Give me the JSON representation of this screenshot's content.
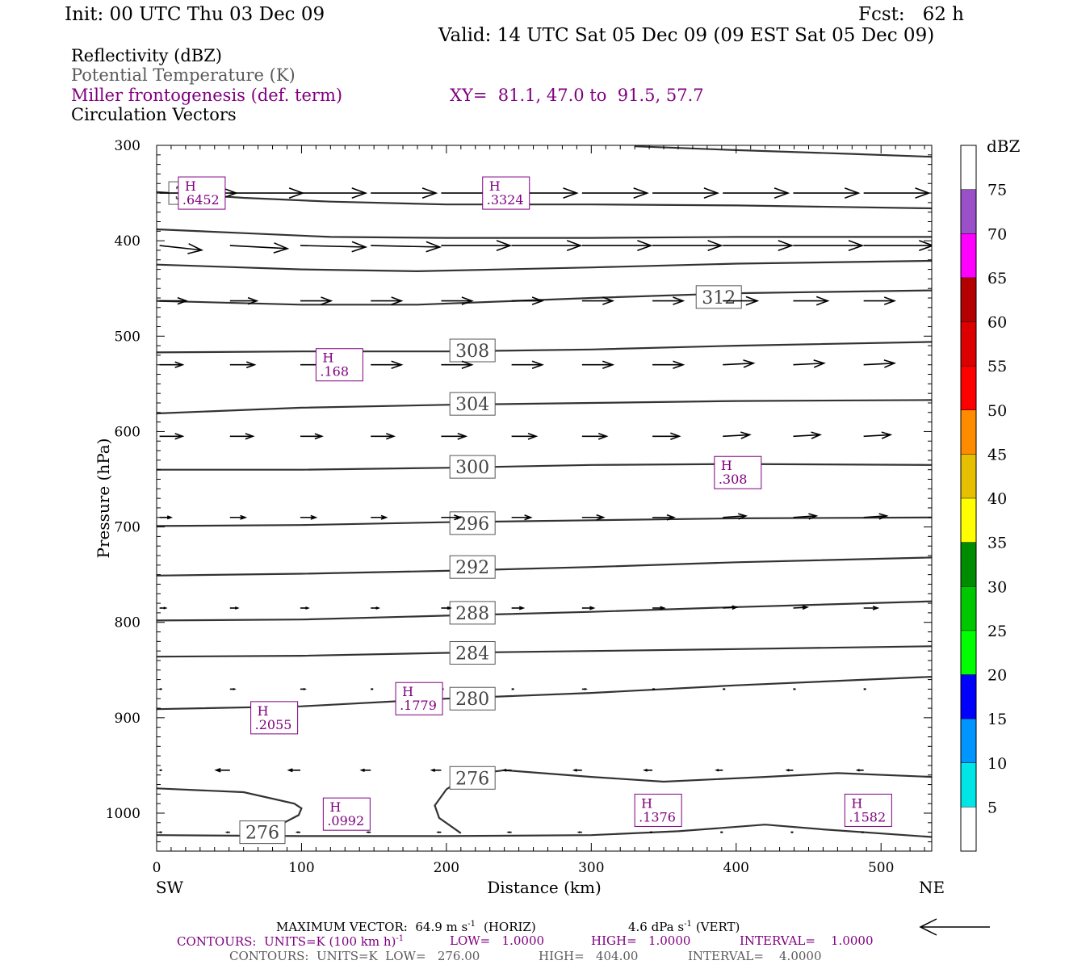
{
  "header": {
    "init": "Init: 00 UTC Thu 03 Dec 09",
    "fcst": "Fcst:   62 h",
    "valid": "Valid: 14 UTC Sat 05 Dec 09 (09 EST Sat 05 Dec 09)"
  },
  "fields": {
    "f1": "Reflectivity (dBZ)",
    "f2": "Potential Temperature (K)",
    "f3": "Miller frontogenesis (def. term)",
    "xy": "XY=  81.1, 47.0 to  91.5, 57.7",
    "f4": "Circulation Vectors"
  },
  "footer": {
    "line1_a": "MAXIMUM VECTOR:  64.9 m s",
    "line1_b": "(HORIZ)",
    "line1_c": "4.6 dPa s",
    "line1_d": "(VERT)",
    "sup": "-1",
    "line2_a": "CONTOURS:  UNITS=K (100 km h)",
    "line2_b": "LOW=   1.0000",
    "line2_c": "HIGH=   1.0000",
    "line2_d": "INTERVAL=    1.0000",
    "line3_a": "CONTOURS:  UNITS=K  LOW=   276.00",
    "line3_b": "HIGH=   404.00",
    "line3_c": "INTERVAL=    4.0000"
  },
  "colors": {
    "purple": "#800080",
    "grey": "#5a5a5a"
  },
  "chart_data": {
    "type": "line",
    "title": "",
    "xlabel": "Distance (km)",
    "ylabel": "Pressure (hPa)",
    "xlim": [
      0,
      535
    ],
    "ylim": [
      1040,
      300
    ],
    "x_ticks": [
      0,
      100,
      200,
      300,
      400,
      500
    ],
    "y_ticks": [
      300,
      400,
      500,
      600,
      700,
      800,
      900,
      1000
    ],
    "x_end_labels": {
      "left": "SW",
      "right": "NE"
    },
    "grid": false,
    "theta_contours": [
      {
        "label": "276",
        "points": [
          [
            0,
            1023
          ],
          [
            100,
            1024
          ],
          [
            200,
            1024
          ],
          [
            300,
            1023
          ],
          [
            360,
            1019
          ],
          [
            420,
            1012
          ],
          [
            460,
            1017
          ],
          [
            535,
            1025
          ]
        ]
      },
      {
        "label": "276",
        "points": [
          [
            0,
            974
          ],
          [
            60,
            978
          ],
          [
            95,
            990
          ],
          [
            100,
            995
          ],
          [
            98,
            1002
          ],
          [
            88,
            1010
          ],
          [
            86,
            1015
          ]
        ]
      },
      {
        "label": "276",
        "points": [
          [
            210,
            1021
          ],
          [
            195,
            1005
          ],
          [
            192,
            992
          ],
          [
            200,
            975
          ],
          [
            215,
            960
          ],
          [
            240,
            955
          ],
          [
            300,
            962
          ],
          [
            350,
            967
          ],
          [
            420,
            962
          ],
          [
            470,
            958
          ],
          [
            535,
            962
          ]
        ]
      },
      {
        "label": "280",
        "points": [
          [
            0,
            891
          ],
          [
            100,
            888
          ],
          [
            200,
            880
          ],
          [
            300,
            874
          ],
          [
            400,
            866
          ],
          [
            535,
            857
          ]
        ]
      },
      {
        "label": "284",
        "points": [
          [
            0,
            836
          ],
          [
            100,
            835
          ],
          [
            200,
            832
          ],
          [
            300,
            830
          ],
          [
            400,
            828
          ],
          [
            535,
            825
          ]
        ]
      },
      {
        "label": "288",
        "points": [
          [
            0,
            798
          ],
          [
            100,
            797
          ],
          [
            200,
            793
          ],
          [
            300,
            789
          ],
          [
            400,
            784
          ],
          [
            535,
            778
          ]
        ]
      },
      {
        "label": "292",
        "points": [
          [
            0,
            751
          ],
          [
            100,
            749
          ],
          [
            200,
            746
          ],
          [
            300,
            742
          ],
          [
            400,
            737
          ],
          [
            535,
            732
          ]
        ]
      },
      {
        "label": "296",
        "points": [
          [
            0,
            699
          ],
          [
            100,
            698
          ],
          [
            200,
            695
          ],
          [
            300,
            693
          ],
          [
            400,
            691
          ],
          [
            535,
            690
          ]
        ]
      },
      {
        "label": "300",
        "points": [
          [
            0,
            640
          ],
          [
            100,
            640
          ],
          [
            200,
            638
          ],
          [
            300,
            635
          ],
          [
            400,
            634
          ],
          [
            535,
            635
          ]
        ]
      },
      {
        "label": "304",
        "points": [
          [
            0,
            581
          ],
          [
            100,
            575
          ],
          [
            200,
            572
          ],
          [
            300,
            570
          ],
          [
            400,
            568
          ],
          [
            535,
            567
          ]
        ]
      },
      {
        "label": "308",
        "points": [
          [
            0,
            517
          ],
          [
            100,
            516
          ],
          [
            200,
            516
          ],
          [
            300,
            514
          ],
          [
            400,
            510
          ],
          [
            535,
            506
          ]
        ]
      },
      {
        "label": "312",
        "points": [
          [
            0,
            463
          ],
          [
            100,
            467
          ],
          [
            180,
            467
          ],
          [
            300,
            460
          ],
          [
            400,
            455
          ],
          [
            535,
            452
          ]
        ]
      },
      {
        "label": "",
        "points": [
          [
            0,
            425
          ],
          [
            100,
            430
          ],
          [
            180,
            432
          ],
          [
            300,
            428
          ],
          [
            400,
            424
          ],
          [
            535,
            421
          ]
        ]
      },
      {
        "label": "",
        "points": [
          [
            0,
            388
          ],
          [
            60,
            392
          ],
          [
            120,
            396
          ],
          [
            200,
            397
          ],
          [
            300,
            397
          ],
          [
            400,
            396
          ],
          [
            535,
            396
          ]
        ]
      },
      {
        "label": "324",
        "points": [
          [
            0,
            349
          ],
          [
            60,
            355
          ],
          [
            120,
            359
          ],
          [
            200,
            362
          ],
          [
            300,
            362
          ],
          [
            400,
            363
          ],
          [
            535,
            366
          ]
        ]
      },
      {
        "label": "",
        "points": [
          [
            330,
            301
          ],
          [
            400,
            305
          ],
          [
            480,
            309
          ],
          [
            535,
            312
          ]
        ]
      }
    ],
    "frontogenesis_highs": [
      {
        "x": 15,
        "p": 350,
        "value": ".6452"
      },
      {
        "x": 225,
        "p": 350,
        "value": ".3324"
      },
      {
        "x": 110,
        "p": 530,
        "value": ".168"
      },
      {
        "x": 385,
        "p": 643,
        "value": ".308"
      },
      {
        "x": 65,
        "p": 900,
        "value": ".2055"
      },
      {
        "x": 165,
        "p": 880,
        "value": ".1779"
      },
      {
        "x": 115,
        "p": 1001,
        "value": ".0992"
      },
      {
        "x": 330,
        "p": 997,
        "value": ".1376"
      },
      {
        "x": 475,
        "p": 997,
        "value": ".1582"
      }
    ],
    "vectors": [
      {
        "p": 350,
        "u": [
          1.0,
          0.95,
          0.85,
          0.85,
          0.85,
          0.85,
          0.85,
          0.85,
          0.85,
          0.85,
          0.85
        ],
        "w": [
          0,
          0,
          0,
          0,
          0,
          0,
          0,
          0,
          0,
          0,
          0
        ]
      },
      {
        "p": 405,
        "u": [
          0.55,
          0.75,
          0.85,
          0.9,
          0.9,
          0.9,
          0.9,
          0.9,
          0.9,
          0.9,
          0.9
        ],
        "w": [
          -0.06,
          -0.04,
          -0.02,
          -0.02,
          0,
          0,
          0,
          0,
          0,
          0,
          0
        ]
      },
      {
        "p": 463,
        "u": [
          0.35,
          0.35,
          0.4,
          0.4,
          0.4,
          0.4,
          0.4,
          0.4,
          0.45,
          0.45,
          0.4
        ],
        "w": [
          0,
          0,
          0,
          0,
          0,
          0,
          0,
          0,
          0,
          0,
          0
        ]
      },
      {
        "p": 530,
        "u": [
          0.3,
          0.32,
          0.35,
          0.4,
          0.4,
          0.4,
          0.4,
          0.4,
          0.4,
          0.4,
          0.4
        ],
        "w": [
          0,
          0,
          0,
          0,
          0,
          0,
          0,
          0,
          0.02,
          0.02,
          0.02
        ]
      },
      {
        "p": 605,
        "u": [
          0.3,
          0.3,
          0.28,
          0.3,
          0.32,
          0.32,
          0.32,
          0.35,
          0.35,
          0.35,
          0.35
        ],
        "w": [
          0,
          0,
          0,
          0,
          0,
          0,
          0,
          0,
          0.02,
          0.02,
          0.02
        ]
      },
      {
        "p": 690,
        "u": [
          0.15,
          0.2,
          0.2,
          0.2,
          0.25,
          0.25,
          0.28,
          0.28,
          0.3,
          0.3,
          0.3
        ],
        "w": [
          0,
          0,
          0,
          0,
          0,
          0,
          0,
          0,
          0.02,
          0.02,
          0.02
        ]
      },
      {
        "p": 785,
        "u": [
          0.08,
          0.1,
          0.1,
          0.1,
          0.12,
          0.15,
          0.15,
          0.15,
          0.18,
          0.18,
          0.18
        ],
        "w": [
          0,
          0,
          0,
          0,
          0,
          0,
          0,
          0,
          0.01,
          0.01,
          0
        ]
      },
      {
        "p": 870,
        "u": [
          0,
          0.06,
          0.06,
          0.0,
          0,
          0,
          0.05,
          0,
          0,
          0,
          0
        ],
        "w": [
          0,
          0,
          0,
          0,
          0,
          0,
          0,
          0,
          0,
          0,
          0
        ]
      },
      {
        "p": 955,
        "u": [
          0,
          -0.18,
          -0.15,
          -0.12,
          -0.12,
          -0.1,
          -0.1,
          -0.1,
          -0.08,
          -0.08,
          -0.08
        ],
        "w": [
          0,
          0,
          0,
          0,
          0,
          0,
          0,
          0,
          0,
          0,
          0
        ]
      },
      {
        "p": 1020,
        "u": [
          0,
          -0.04,
          -0.04,
          -0.04,
          -0.04,
          -0.04,
          -0.04,
          -0.03,
          -0.03,
          -0.03,
          -0.03
        ],
        "w": [
          0,
          0,
          0,
          0,
          0,
          0,
          0,
          0,
          0,
          0,
          0
        ]
      }
    ],
    "colorbar": {
      "title": "dBZ",
      "labels": [
        "5",
        "10",
        "15",
        "20",
        "25",
        "30",
        "35",
        "40",
        "45",
        "50",
        "55",
        "60",
        "65",
        "70",
        "75"
      ],
      "colors": [
        "#ffffff",
        "#00e5e5",
        "#0095ff",
        "#0000ff",
        "#00ff00",
        "#00c800",
        "#008c00",
        "#ffff00",
        "#e6c000",
        "#ff8c00",
        "#ff0000",
        "#dc0000",
        "#b40000",
        "#ff00ff",
        "#9a50c8",
        "#ffffff"
      ]
    }
  }
}
